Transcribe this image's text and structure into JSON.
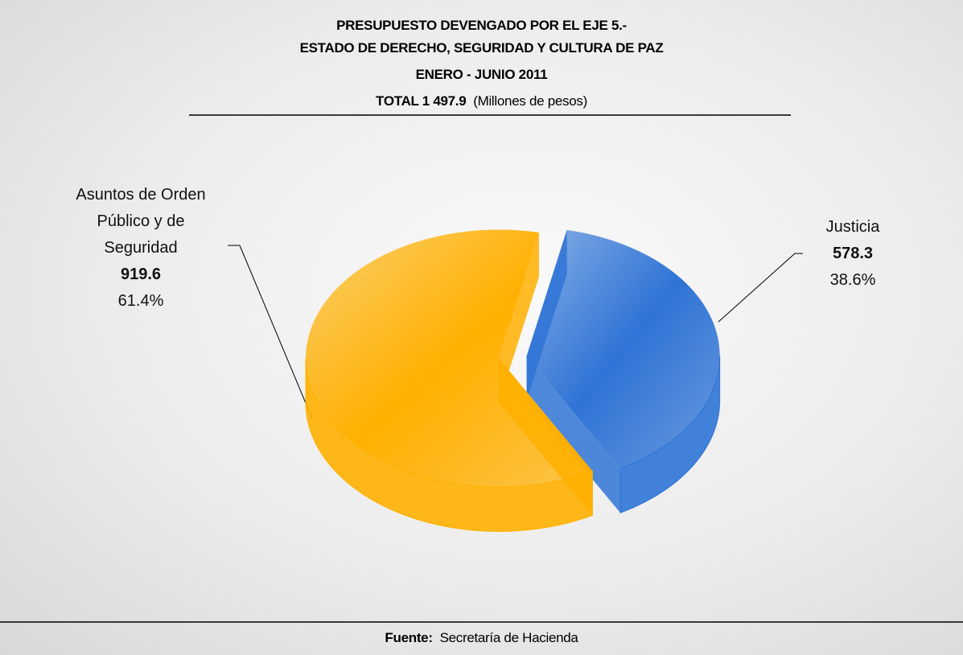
{
  "chart_data": {
    "type": "pie",
    "title": [
      "PRESUPUESTO DEVENGADO POR EL EJE 5.-",
      "ESTADO DE DERECHO, SEGURIDAD Y CULTURA DE PAZ",
      "ENERO - JUNIO 2011"
    ],
    "total_label": "TOTAL 1 497.9",
    "units": "(Millones de pesos)",
    "categories": [
      "Asuntos de Orden Público y de Seguridad",
      "Justicia"
    ],
    "values": [
      919.6,
      578.3
    ],
    "percent_labels": [
      "61.4%",
      "38.6%"
    ],
    "colors": [
      "#ffb000",
      "#2f74d6"
    ],
    "source_label": "Fuente:",
    "source": "Secretaría de Hacienda"
  }
}
